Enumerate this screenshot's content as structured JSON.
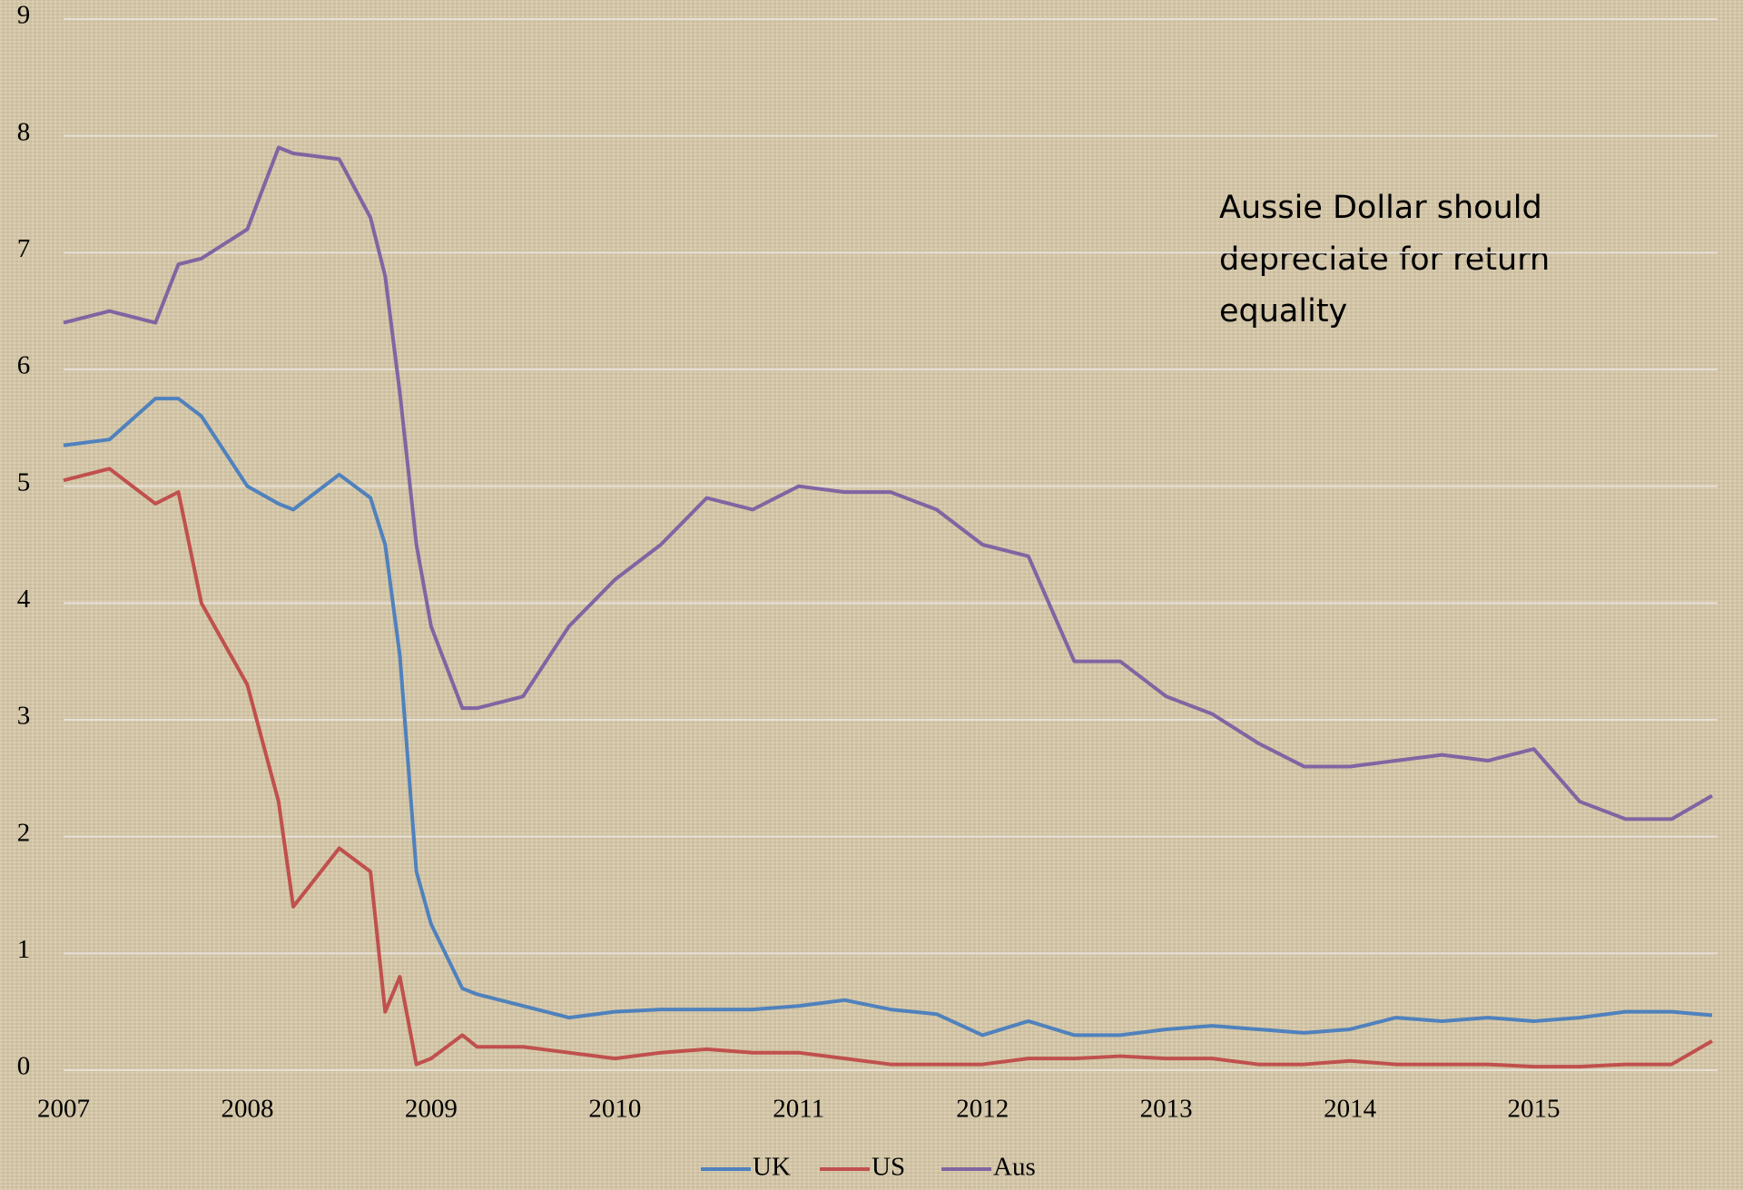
{
  "chart_data": {
    "type": "line",
    "annotation": "Aussie Dollar should depreciate for return equality",
    "x": [
      2007,
      2007.25,
      2007.5,
      2007.625,
      2007.75,
      2008,
      2008.17,
      2008.25,
      2008.5,
      2008.67,
      2008.75,
      2008.83,
      2008.92,
      2009,
      2009.17,
      2009.25,
      2009.5,
      2009.75,
      2010,
      2010.25,
      2010.5,
      2010.75,
      2011,
      2011.25,
      2011.5,
      2011.75,
      2012,
      2012.25,
      2012.5,
      2012.75,
      2013,
      2013.25,
      2013.5,
      2013.75,
      2014,
      2014.25,
      2014.5,
      2014.75,
      2015,
      2015.25,
      2015.5,
      2015.75,
      2015.97
    ],
    "series": [
      {
        "name": "UK",
        "color": "#4f81bd",
        "values": [
          5.35,
          5.4,
          5.75,
          5.75,
          5.6,
          5.0,
          4.85,
          4.8,
          5.1,
          4.9,
          4.5,
          3.55,
          1.7,
          1.25,
          0.7,
          0.65,
          0.55,
          0.45,
          0.5,
          0.52,
          0.52,
          0.52,
          0.55,
          0.6,
          0.52,
          0.48,
          0.3,
          0.42,
          0.3,
          0.3,
          0.35,
          0.38,
          0.35,
          0.32,
          0.35,
          0.45,
          0.42,
          0.45,
          0.42,
          0.45,
          0.5,
          0.5,
          0.47
        ]
      },
      {
        "name": "US",
        "color": "#c0504d",
        "values": [
          5.05,
          5.15,
          4.85,
          4.95,
          4.0,
          3.3,
          2.3,
          1.4,
          1.9,
          1.7,
          0.5,
          0.8,
          0.05,
          0.1,
          0.3,
          0.2,
          0.2,
          0.15,
          0.1,
          0.15,
          0.18,
          0.15,
          0.15,
          0.1,
          0.05,
          0.05,
          0.05,
          0.1,
          0.1,
          0.12,
          0.1,
          0.1,
          0.05,
          0.05,
          0.08,
          0.05,
          0.05,
          0.05,
          0.03,
          0.03,
          0.05,
          0.05,
          0.25
        ]
      },
      {
        "name": "Aus",
        "color": "#8064a2",
        "values": [
          6.4,
          6.5,
          6.4,
          6.9,
          6.95,
          7.2,
          7.9,
          7.85,
          7.8,
          7.3,
          6.8,
          5.8,
          4.5,
          3.8,
          3.1,
          3.1,
          3.2,
          3.8,
          4.2,
          4.5,
          4.9,
          4.8,
          5.0,
          4.95,
          4.95,
          4.8,
          4.5,
          4.4,
          3.5,
          3.5,
          3.2,
          3.05,
          2.8,
          2.6,
          2.6,
          2.65,
          2.7,
          2.65,
          2.75,
          2.3,
          2.15,
          2.15,
          2.35
        ]
      }
    ],
    "xlim": [
      2007,
      2016
    ],
    "xticks": [
      2007,
      2008,
      2009,
      2010,
      2011,
      2012,
      2013,
      2014,
      2015
    ],
    "ylim": [
      0,
      9
    ],
    "yticks": [
      0,
      1,
      2,
      3,
      4,
      5,
      6,
      7,
      8,
      9
    ],
    "grid": true,
    "legend": "bottom"
  }
}
